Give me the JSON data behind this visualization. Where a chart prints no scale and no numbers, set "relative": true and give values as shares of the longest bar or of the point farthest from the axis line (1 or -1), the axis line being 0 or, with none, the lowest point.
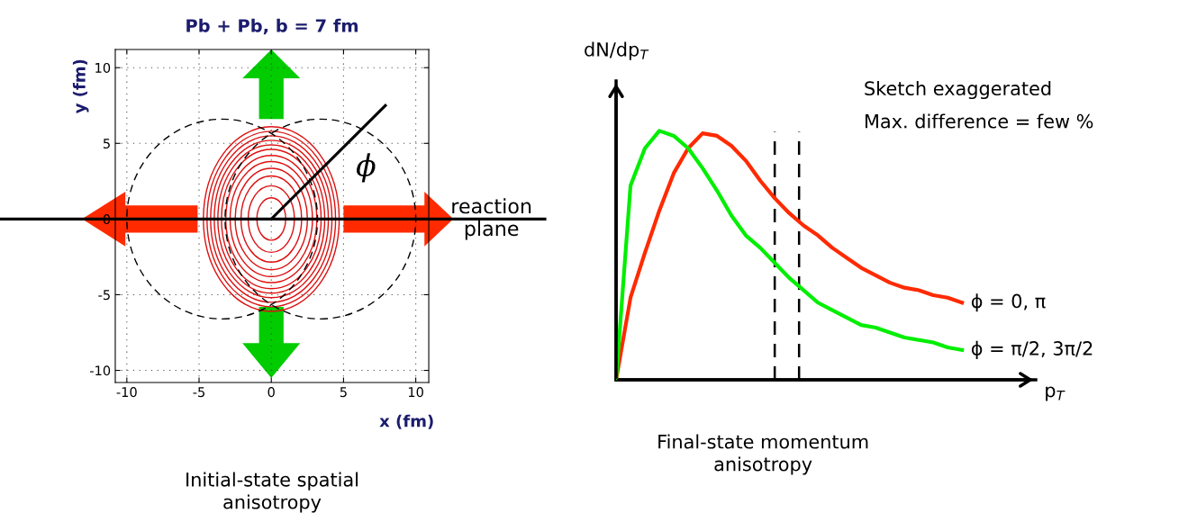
{
  "chart_data": [
    {
      "type": "line",
      "title": "Pb + Pb, b = 7 fm",
      "xlabel": "x (fm)",
      "ylabel": "y (fm)",
      "xlim": [
        -10.8,
        10.9
      ],
      "ylim": [
        -10.8,
        11.2
      ],
      "xticks": [
        -10,
        -5,
        0,
        5,
        10
      ],
      "yticks": [
        -10,
        -5,
        0,
        5,
        10
      ],
      "grid": true,
      "series": [
        {
          "color": "#000000",
          "x": [
            0,
            7.9
          ],
          "values": [
            0,
            7.5
          ]
        }
      ],
      "ref_lines": [
        {
          "axis": "y",
          "value": 0,
          "label": "reaction\nplane",
          "color": "#000000"
        }
      ],
      "annotations": [
        "ϕ",
        "Initial-state spatial\nanisotropy"
      ]
    },
    {
      "type": "line",
      "relative": true,
      "xlabel": "p$_{T}$",
      "ylabel": "dN/dp$_{T}$",
      "categories": [
        null,
        null,
        null,
        null,
        null,
        null,
        null,
        null,
        null,
        null,
        null,
        null,
        null,
        null,
        null,
        null,
        null,
        null,
        null,
        null,
        null,
        null,
        null,
        null,
        null
      ],
      "series": [
        {
          "name": "ϕ = 0, π",
          "color": "#ff2a00",
          "values": [
            0,
            0.33,
            0.51,
            0.68,
            0.83,
            0.93,
            0.99,
            0.98,
            0.94,
            0.88,
            0.8,
            0.73,
            0.67,
            0.62,
            0.58,
            0.53,
            0.49,
            0.45,
            0.42,
            0.39,
            0.37,
            0.36,
            0.34,
            0.33,
            0.31
          ]
        },
        {
          "name": "ϕ = π/2, 3π/2",
          "color": "#00ee00",
          "values": [
            0,
            0.78,
            0.93,
            1.0,
            0.98,
            0.93,
            0.85,
            0.76,
            0.66,
            0.58,
            0.53,
            0.47,
            0.41,
            0.36,
            0.31,
            0.28,
            0.25,
            0.22,
            0.21,
            0.19,
            0.17,
            0.16,
            0.15,
            0.13,
            0.12
          ]
        }
      ],
      "annotations": [
        "Sketch exaggerated",
        "Max. difference = few %",
        "Final-state momentum\nanisotropy"
      ]
    }
  ]
}
